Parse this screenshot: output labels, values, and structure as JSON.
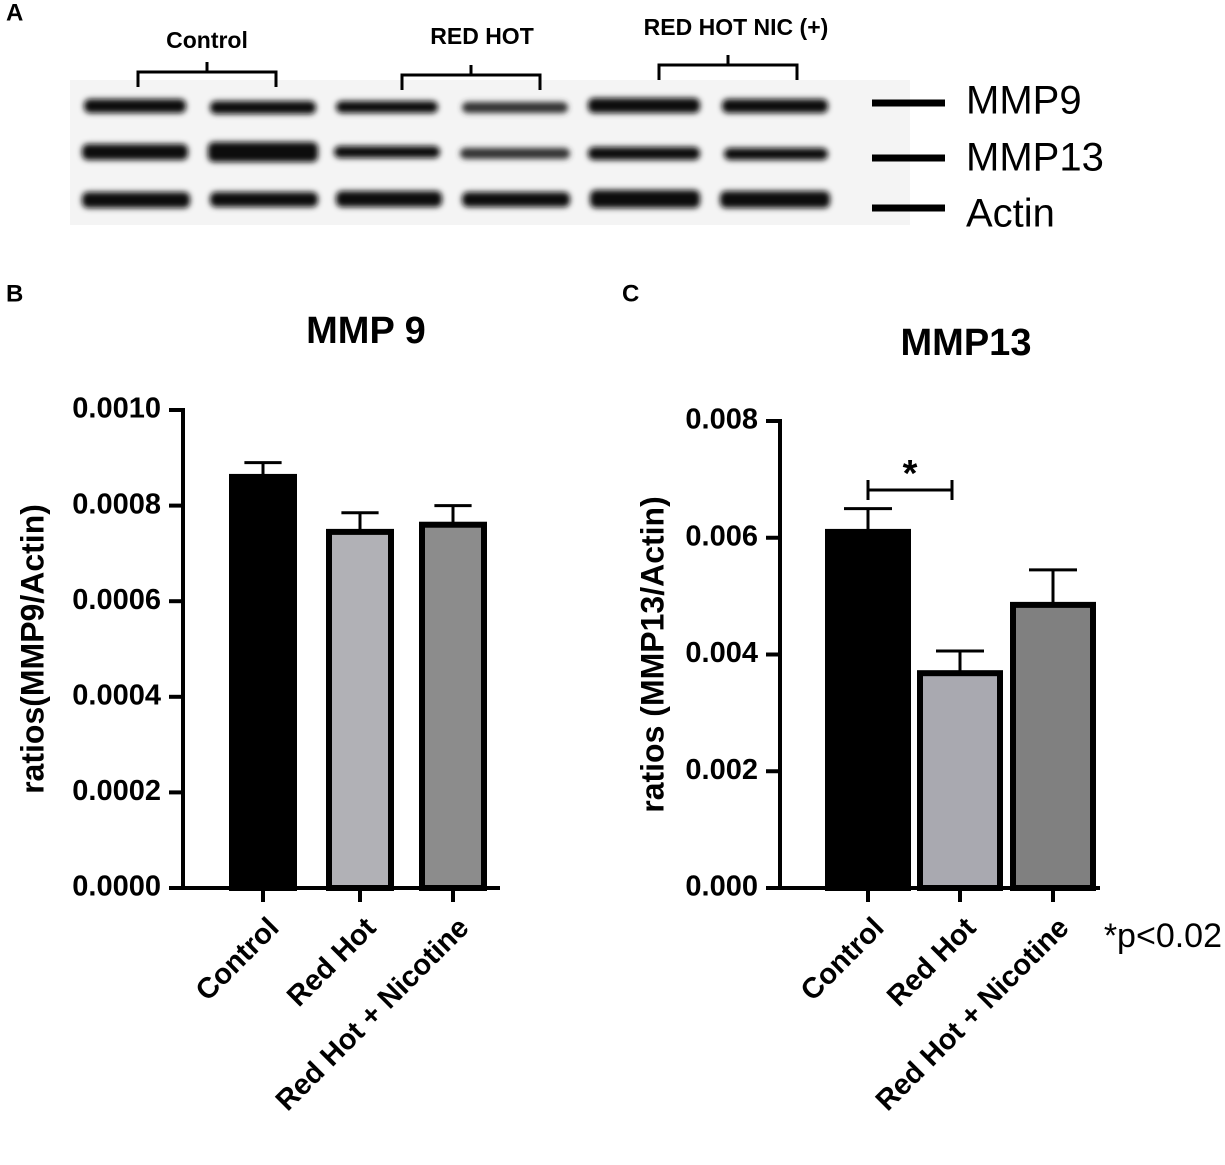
{
  "panel_labels": [
    "A",
    "B",
    "C"
  ],
  "blot": {
    "groups": [
      "Control",
      "RED HOT",
      "RED HOT NIC (+)"
    ],
    "bands": [
      "MMP9",
      "MMP13",
      "Actin"
    ]
  },
  "chart_data": [
    {
      "type": "bar",
      "title": "MMP 9",
      "y_label": "ratios(MMP9/Actin)",
      "categories": [
        "Control",
        "Red Hot",
        "Red Hot + Nicotine"
      ],
      "values": [
        0.00086,
        0.000745,
        0.00076
      ],
      "errors": [
        3e-05,
        4e-05,
        4e-05
      ],
      "colors": [
        "#000000",
        "#b1b1b6",
        "#8c8c8c"
      ],
      "ylim": [
        0,
        0.001
      ],
      "yticks": [
        {
          "value": 0,
          "label": "0.0000"
        },
        {
          "value": 0.0002,
          "label": "0.0002"
        },
        {
          "value": 0.0004,
          "label": "0.0004"
        },
        {
          "value": 0.0006,
          "label": "0.0006"
        },
        {
          "value": 0.0008,
          "label": "0.0008"
        },
        {
          "value": 0.001,
          "label": "0.0010"
        }
      ]
    },
    {
      "type": "bar",
      "title": "MMP13",
      "y_label": "ratios (MMP13/Actin)",
      "categories": [
        "Control",
        "Red Hot",
        "Red Hot + Nicotine"
      ],
      "values": [
        0.0061,
        0.00368,
        0.00485
      ],
      "errors": [
        0.0004,
        0.00038,
        0.0006
      ],
      "colors": [
        "#000000",
        "#a9a9b0",
        "#808080"
      ],
      "ylim": [
        0,
        0.008
      ],
      "yticks": [
        {
          "value": 0,
          "label": "0.000"
        },
        {
          "value": 0.002,
          "label": "0.002"
        },
        {
          "value": 0.004,
          "label": "0.004"
        },
        {
          "value": 0.006,
          "label": "0.006"
        },
        {
          "value": 0.008,
          "label": "0.008"
        }
      ],
      "annotations": [
        "*",
        "*p<0.02"
      ]
    }
  ]
}
